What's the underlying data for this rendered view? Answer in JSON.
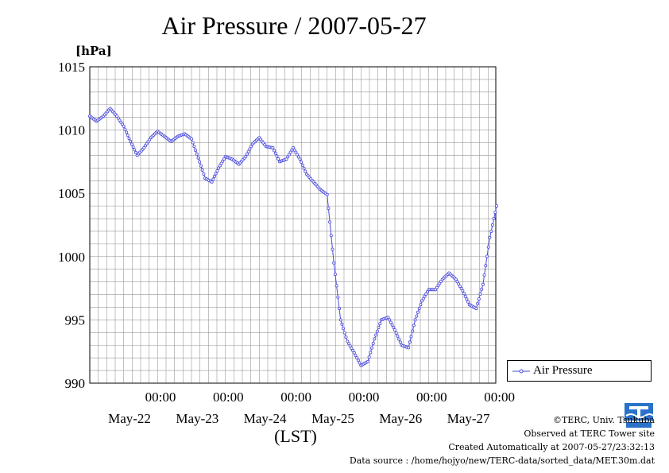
{
  "colors": {
    "series": "#4a4adc",
    "grid": "#999999",
    "axis": "#000000"
  },
  "chart_data": {
    "type": "line",
    "title": "Air Pressure / 2007-05-27",
    "ylabel": "[hPa]",
    "xlabel": "(LST)",
    "ylim": [
      990,
      1015
    ],
    "yticks": [
      990,
      995,
      1000,
      1005,
      1010,
      1015
    ],
    "ytick_labels": [
      "990",
      "995",
      "1000",
      "1005",
      "1010",
      "1015"
    ],
    "xlim_days": [
      0,
      6.0
    ],
    "xtick_labels": [
      {
        "time": "00:00",
        "date": "May-22"
      },
      {
        "time": "00:00",
        "date": "May-23"
      },
      {
        "time": "00:00",
        "date": "May-24"
      },
      {
        "time": "00:00",
        "date": "May-25"
      },
      {
        "time": "00:00",
        "date": "May-26"
      },
      {
        "time": "00:00",
        "date": "May-27"
      }
    ],
    "grid": true,
    "legend_position": "bottom-right",
    "series": [
      {
        "name": "Air Pressure",
        "x": [
          0.0,
          0.1,
          0.2,
          0.3,
          0.4,
          0.5,
          0.6,
          0.7,
          0.8,
          0.9,
          1.0,
          1.1,
          1.2,
          1.3,
          1.4,
          1.5,
          1.6,
          1.7,
          1.8,
          1.9,
          2.0,
          2.1,
          2.2,
          2.3,
          2.4,
          2.5,
          2.6,
          2.7,
          2.8,
          2.9,
          3.0,
          3.1,
          3.2,
          3.3,
          3.4,
          3.5,
          3.6,
          3.7,
          3.8,
          3.9,
          4.0,
          4.1,
          4.2,
          4.3,
          4.4,
          4.5,
          4.6,
          4.7,
          4.8,
          4.9,
          5.0,
          5.1,
          5.2,
          5.3,
          5.4,
          5.5,
          5.6,
          5.7,
          5.8,
          5.9,
          6.0
        ],
        "values": [
          1011.1,
          1010.7,
          1011.1,
          1011.7,
          1011.1,
          1010.3,
          1009.1,
          1008.0,
          1008.6,
          1009.4,
          1009.9,
          1009.5,
          1009.1,
          1009.5,
          1009.7,
          1009.3,
          1007.8,
          1006.2,
          1005.9,
          1007.0,
          1007.9,
          1007.7,
          1007.3,
          1007.9,
          1008.9,
          1009.4,
          1008.7,
          1008.6,
          1007.5,
          1007.7,
          1008.6,
          1007.7,
          1006.5,
          1005.9,
          1005.3,
          1004.9,
          999.5,
          995.0,
          993.3,
          992.4,
          991.4,
          991.7,
          993.5,
          995.0,
          995.2,
          994.2,
          993.0,
          992.8,
          995.0,
          996.5,
          997.4,
          997.4,
          998.2,
          998.7,
          998.2,
          997.3,
          996.2,
          995.9,
          997.8,
          1001.5,
          1004.0
        ]
      }
    ]
  },
  "legend": {
    "label": "Air Pressure"
  },
  "footer": {
    "copyright": "©TERC, Univ. Tsukuba",
    "observed": "Observed at TERC Tower site",
    "created": "Created Automatically at 2007-05-27/23:32:13",
    "source": "Data source : /home/hojyo/new/TERC-data/sorted_data/MET.30m.dat"
  }
}
